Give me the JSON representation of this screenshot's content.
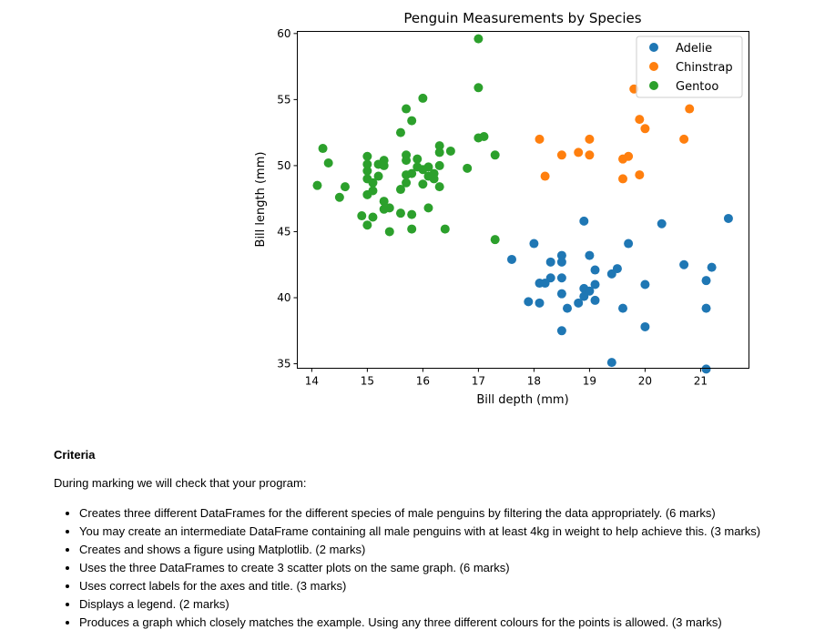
{
  "chart_data": {
    "type": "scatter",
    "title": "Penguin Measurements by Species",
    "xlabel": "Bill depth (mm)",
    "ylabel": "Bill length (mm)",
    "xlim": [
      13.74,
      21.87
    ],
    "ylim": [
      34.66,
      60.16
    ],
    "xticks": [
      14,
      15,
      16,
      17,
      18,
      19,
      20,
      21
    ],
    "yticks": [
      35,
      40,
      45,
      50,
      55,
      60
    ],
    "grid": false,
    "legend_position": "top-right",
    "series": [
      {
        "name": "Adelie",
        "color": "#1f77b4",
        "points": [
          [
            18.9,
            45.8
          ],
          [
            20.3,
            45.6
          ],
          [
            21.5,
            46.0
          ],
          [
            18.0,
            44.1
          ],
          [
            19.7,
            44.1
          ],
          [
            17.6,
            42.9
          ],
          [
            18.3,
            42.7
          ],
          [
            18.5,
            43.2
          ],
          [
            18.5,
            42.7
          ],
          [
            19.0,
            43.2
          ],
          [
            19.1,
            42.1
          ],
          [
            19.5,
            42.2
          ],
          [
            19.4,
            41.8
          ],
          [
            20.7,
            42.5
          ],
          [
            21.2,
            42.3
          ],
          [
            18.3,
            41.5
          ],
          [
            18.5,
            41.5
          ],
          [
            18.1,
            41.1
          ],
          [
            18.2,
            41.1
          ],
          [
            19.1,
            41.0
          ],
          [
            18.9,
            40.7
          ],
          [
            19.0,
            40.5
          ],
          [
            18.9,
            40.1
          ],
          [
            18.5,
            40.3
          ],
          [
            17.9,
            39.7
          ],
          [
            18.1,
            39.6
          ],
          [
            19.1,
            39.8
          ],
          [
            18.8,
            39.6
          ],
          [
            18.6,
            39.2
          ],
          [
            19.6,
            39.2
          ],
          [
            20.0,
            41.0
          ],
          [
            21.1,
            41.3
          ],
          [
            21.1,
            39.2
          ],
          [
            20.0,
            37.8
          ],
          [
            18.5,
            37.5
          ],
          [
            19.4,
            35.1
          ],
          [
            21.1,
            34.6
          ]
        ]
      },
      {
        "name": "Chinstrap",
        "color": "#ff7f0e",
        "points": [
          [
            19.8,
            55.8
          ],
          [
            20.8,
            54.3
          ],
          [
            19.9,
            53.5
          ],
          [
            20.0,
            52.8
          ],
          [
            18.1,
            52.0
          ],
          [
            19.0,
            52.0
          ],
          [
            20.7,
            52.0
          ],
          [
            18.5,
            50.8
          ],
          [
            18.8,
            51.0
          ],
          [
            19.0,
            50.8
          ],
          [
            19.6,
            50.5
          ],
          [
            19.7,
            50.7
          ],
          [
            18.2,
            49.2
          ],
          [
            19.6,
            49.0
          ],
          [
            19.9,
            49.3
          ]
        ]
      },
      {
        "name": "Gentoo",
        "color": "#2ca02c",
        "points": [
          [
            17.0,
            59.6
          ],
          [
            17.0,
            55.9
          ],
          [
            17.0,
            52.1
          ],
          [
            17.1,
            52.2
          ],
          [
            17.3,
            50.8
          ],
          [
            16.8,
            49.8
          ],
          [
            16.0,
            55.1
          ],
          [
            15.7,
            54.3
          ],
          [
            15.8,
            53.4
          ],
          [
            15.6,
            52.5
          ],
          [
            14.2,
            51.3
          ],
          [
            16.3,
            51.5
          ],
          [
            16.3,
            51.0
          ],
          [
            16.5,
            51.1
          ],
          [
            14.3,
            50.2
          ],
          [
            15.0,
            50.7
          ],
          [
            15.0,
            50.1
          ],
          [
            15.0,
            49.6
          ],
          [
            15.0,
            49.0
          ],
          [
            15.3,
            50.4
          ],
          [
            15.2,
            50.1
          ],
          [
            15.3,
            50.0
          ],
          [
            15.2,
            49.2
          ],
          [
            15.1,
            48.7
          ],
          [
            15.7,
            50.8
          ],
          [
            15.7,
            50.4
          ],
          [
            15.9,
            50.5
          ],
          [
            15.9,
            49.9
          ],
          [
            15.7,
            49.3
          ],
          [
            15.8,
            49.4
          ],
          [
            16.1,
            49.9
          ],
          [
            16.2,
            49.4
          ],
          [
            16.3,
            50.0
          ],
          [
            16.0,
            49.7
          ],
          [
            16.1,
            49.2
          ],
          [
            16.2,
            49.0
          ],
          [
            15.7,
            48.7
          ],
          [
            16.0,
            48.6
          ],
          [
            16.3,
            48.4
          ],
          [
            14.1,
            48.5
          ],
          [
            14.6,
            48.4
          ],
          [
            14.5,
            47.6
          ],
          [
            15.0,
            47.8
          ],
          [
            15.1,
            48.1
          ],
          [
            15.6,
            48.2
          ],
          [
            15.3,
            47.3
          ],
          [
            15.3,
            46.7
          ],
          [
            15.4,
            46.8
          ],
          [
            16.1,
            46.8
          ],
          [
            15.6,
            46.4
          ],
          [
            15.8,
            46.3
          ],
          [
            14.9,
            46.2
          ],
          [
            15.1,
            46.1
          ],
          [
            15.0,
            45.5
          ],
          [
            15.4,
            45.0
          ],
          [
            15.8,
            45.2
          ],
          [
            16.4,
            45.2
          ],
          [
            17.3,
            44.4
          ]
        ]
      }
    ]
  },
  "criteria": {
    "heading": "Criteria",
    "intro": "During marking we will check that your program:",
    "items": [
      "Creates three different DataFrames for the different species of male penguins by filtering the data appropriately. (6 marks)",
      "You may create an intermediate DataFrame containing all male penguins with at least 4kg in weight to help achieve this. (3 marks)",
      "Creates and shows a figure using Matplotlib. (2 marks)",
      "Uses the three DataFrames to create 3 scatter plots on the same graph. (6 marks)",
      "Uses correct labels for the axes and title. (3 marks)",
      "Displays a legend. (2 marks)",
      "Produces a graph which closely matches the example. Using any three different colours for the points is allowed. (3 marks)"
    ]
  }
}
